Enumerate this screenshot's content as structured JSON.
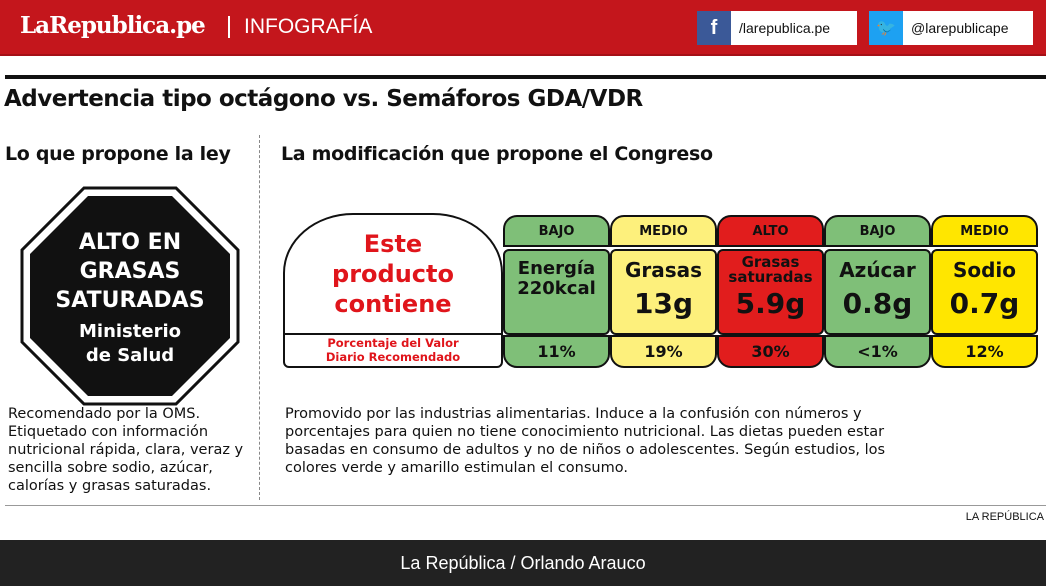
{
  "header": {
    "logo": "LaRepublica.pe",
    "section": "INFOGRAFÍA",
    "facebook": "/larepublica.pe",
    "twitter": "@larepublicape",
    "facebook_icon": "f",
    "twitter_icon": "🐦"
  },
  "title": "Advertencia tipo octágono vs. Semáforos GDA/VDR",
  "left": {
    "heading": "Lo que propone la ley",
    "octagon": {
      "line1": "ALTO EN",
      "line2": "GRASAS",
      "line3": "SATURADAS",
      "line4": "Ministerio",
      "line5": "de Salud"
    },
    "text": "Recomendado por la OMS. Etiquetado con información nutricional rápida, clara, veraz y sencilla sobre sodio, azúcar, calorías y grasas saturadas."
  },
  "right": {
    "heading": "La modificación que propone el Congreso",
    "label": {
      "l1": "Este",
      "l2": "producto",
      "l3": "contiene",
      "note1": "Porcentaje del Valor",
      "note2": "Diario Recomendado"
    },
    "columns": [
      {
        "level": "BAJO",
        "name": "Energía",
        "name2": "220kcal",
        "value": "",
        "percent": "11%",
        "color": "#7fbf78"
      },
      {
        "level": "MEDIO",
        "name": "Grasas",
        "name2": "",
        "value": "13g",
        "percent": "19%",
        "color": "#fdf07c"
      },
      {
        "level": "ALTO",
        "name": "Grasas",
        "name2": "saturadas",
        "value": "5.9g",
        "percent": "30%",
        "color": "#e11d1d"
      },
      {
        "level": "BAJO",
        "name": "Azúcar",
        "name2": "",
        "value": "0.8g",
        "percent": "<1%",
        "color": "#7fbf78"
      },
      {
        "level": "MEDIO",
        "name": "Sodio",
        "name2": "",
        "value": "0.7g",
        "percent": "12%",
        "color": "#ffe600"
      }
    ],
    "text": "Promovido por las industrias alimentarias. Induce a la confusión con números y porcentajes para quien no tiene conocimiento nutricional. Las dietas pueden estar basadas en consumo de adultos y no de niños o adolescentes. Según estudios, los colores verde y amarillo estimulan el consumo."
  },
  "credit": "LA REPÚBLICA",
  "footer": "La República / Orlando Arauco"
}
